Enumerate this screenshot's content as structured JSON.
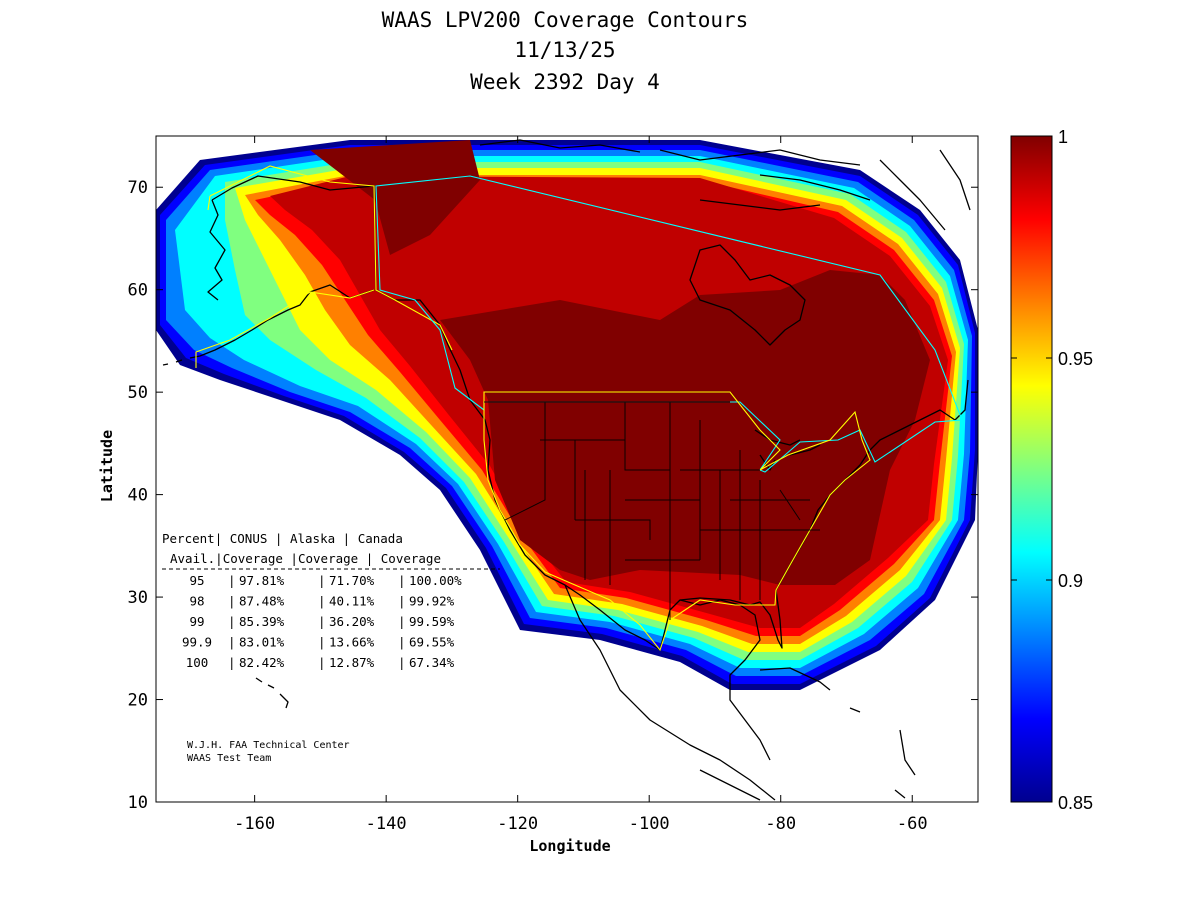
{
  "title": {
    "line1": "WAAS LPV200 Coverage Contours",
    "line2": "11/13/25",
    "line3": "Week 2392 Day 4"
  },
  "axes": {
    "xlabel": "Longitude",
    "ylabel": "Latitude",
    "xlim": [
      -175,
      -50
    ],
    "ylim": [
      10,
      75
    ],
    "xticks": [
      "-160",
      "-140",
      "-120",
      "-100",
      "-80",
      "-60"
    ],
    "yticks": [
      "70",
      "60",
      "50",
      "40",
      "30",
      "20",
      "10"
    ]
  },
  "colorbar": {
    "range": [
      0.85,
      1
    ],
    "ticks": [
      "1",
      "0.95",
      "0.9",
      "0.85"
    ],
    "colormap": [
      "#00008f",
      "#0000ff",
      "#0080ff",
      "#00ffff",
      "#80ff80",
      "#ffff00",
      "#ff8000",
      "#ff0000",
      "#800000"
    ]
  },
  "table": {
    "header1": [
      "Percent",
      "CONUS",
      "Alaska",
      "Canada"
    ],
    "header2": [
      "Avail.",
      "Coverage",
      "Coverage",
      "Coverage"
    ],
    "rows": [
      [
        "95",
        "97.81%",
        "71.70%",
        "100.00%"
      ],
      [
        "98",
        "87.48%",
        "40.11%",
        "99.92%"
      ],
      [
        "99",
        "85.39%",
        "36.20%",
        "99.59%"
      ],
      [
        "99.9",
        "83.01%",
        "13.66%",
        "69.55%"
      ],
      [
        "100",
        "82.42%",
        "12.87%",
        "67.34%"
      ]
    ]
  },
  "credit": {
    "line1": "W.J.H. FAA Technical Center",
    "line2": "WAAS Test Team"
  }
}
